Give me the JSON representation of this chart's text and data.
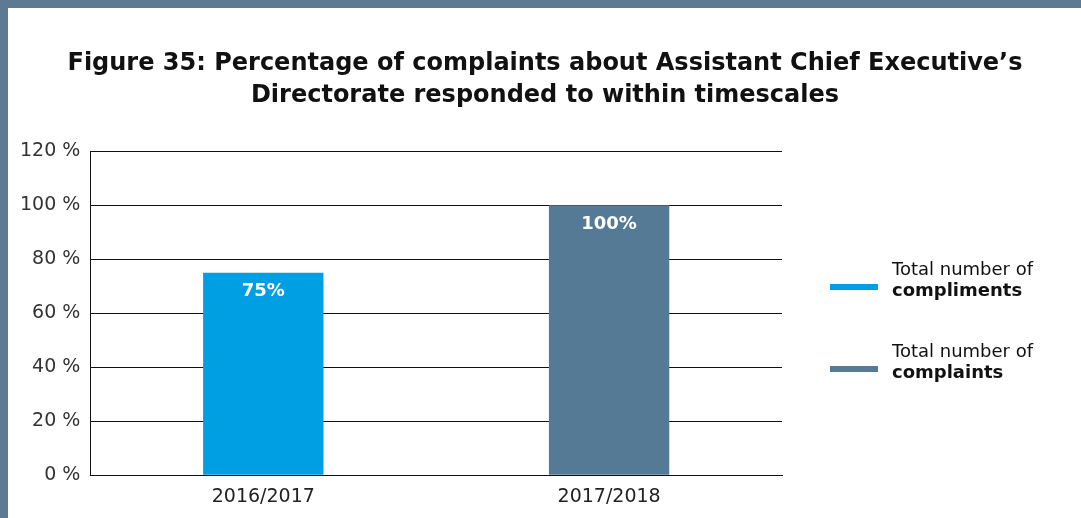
{
  "chart_data": {
    "type": "bar",
    "title": "Figure 35: Percentage of complaints about Assistant Chief Executive’s Directorate responded to within timescales",
    "categories": [
      "2016/2017",
      "2017/2018"
    ],
    "series": [
      {
        "name": "Total number of compliments",
        "color": "#009fe3",
        "values": [
          75,
          null
        ],
        "value_labels": [
          "75%",
          null
        ]
      },
      {
        "name": "Total number of complaints",
        "color": "#557a95",
        "values": [
          null,
          100
        ],
        "value_labels": [
          null,
          "100%"
        ]
      }
    ],
    "ylim": [
      0,
      120
    ],
    "yticks": [
      {
        "value": 0,
        "label": "0 %"
      },
      {
        "value": 20,
        "label": "20 %"
      },
      {
        "value": 40,
        "label": "40 %"
      },
      {
        "value": 60,
        "label": "60 %"
      },
      {
        "value": 80,
        "label": "80 %"
      },
      {
        "value": 100,
        "label": "100 %"
      },
      {
        "value": 120,
        "label": "120 %"
      }
    ],
    "grid": "y",
    "legend": "right"
  }
}
